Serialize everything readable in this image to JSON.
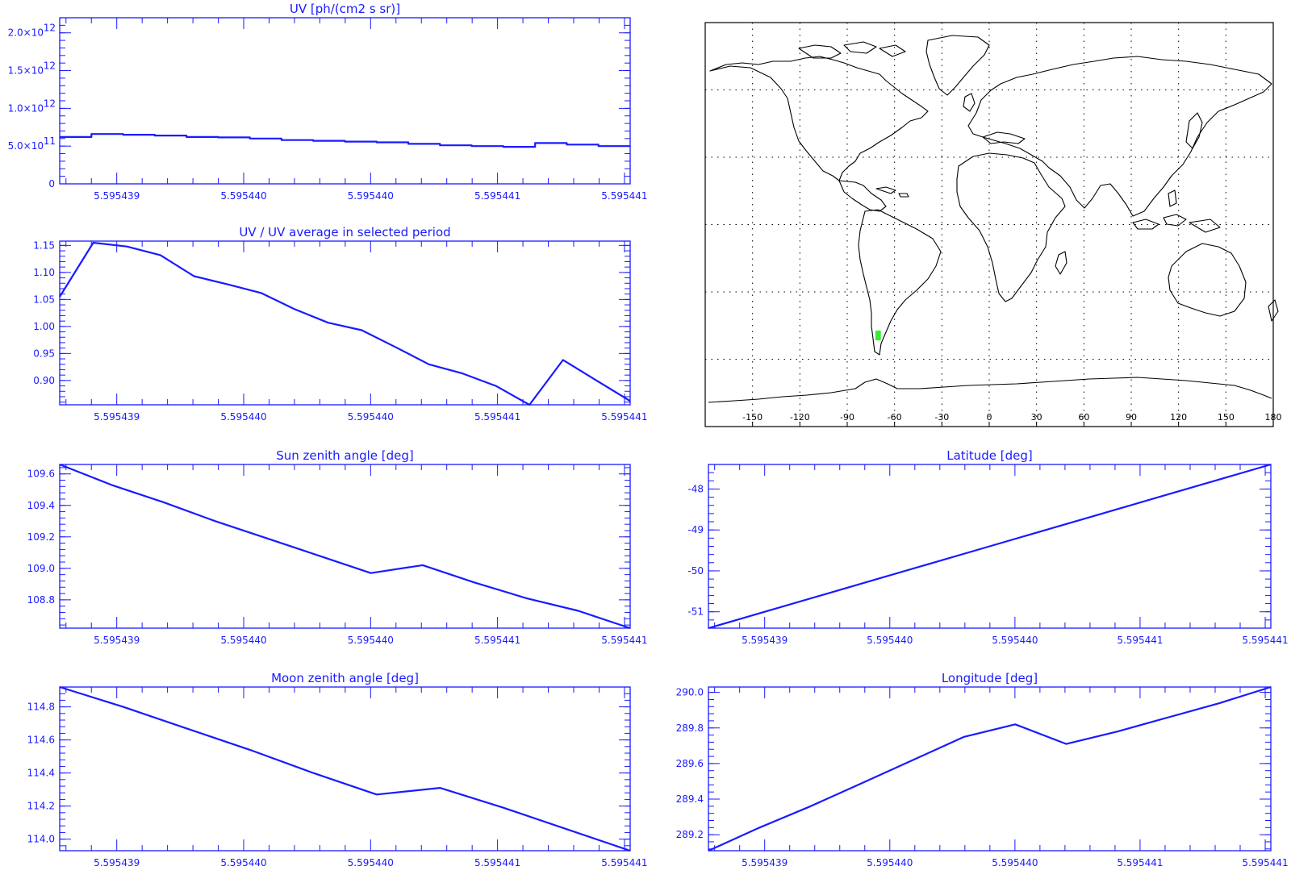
{
  "colors": {
    "plot": "#1a1aff",
    "map": "#000000",
    "marker": "#33ee33",
    "background": "#ffffff"
  },
  "chart_data": [
    {
      "id": "uv",
      "type": "line",
      "step": true,
      "title": "UV [ph/(cm2 s sr)]",
      "xlabel": "",
      "ylabel": "",
      "x_tick_labels": [
        "5.595439",
        "5.595440",
        "5.595440",
        "5.595441",
        "5.595441"
      ],
      "ylim": [
        0,
        2200000000000.0
      ],
      "y_ticks": [
        0,
        500000000000.0,
        1000000000000.0,
        1500000000000.0,
        2000000000000.0
      ],
      "y_tick_labels": [
        "0",
        "5.0×10",
        "1.0×10",
        "1.5×10",
        "2.0×10"
      ],
      "y_tick_exponents": [
        "",
        "11",
        "12",
        "12",
        "12"
      ],
      "values": [
        620000000000.0,
        660000000000.0,
        650000000000.0,
        640000000000.0,
        620000000000.0,
        615000000000.0,
        600000000000.0,
        580000000000.0,
        570000000000.0,
        560000000000.0,
        550000000000.0,
        530000000000.0,
        510000000000.0,
        500000000000.0,
        490000000000.0,
        540000000000.0,
        520000000000.0,
        500000000000.0
      ]
    },
    {
      "id": "uv_ratio",
      "type": "line",
      "title": "UV / UV average in selected period",
      "xlabel": "",
      "ylabel": "",
      "x_tick_labels": [
        "5.595439",
        "5.595440",
        "5.595440",
        "5.595441",
        "5.595441"
      ],
      "ylim": [
        0.855,
        1.158
      ],
      "y_ticks": [
        0.9,
        0.95,
        1.0,
        1.05,
        1.1,
        1.15
      ],
      "y_tick_labels": [
        "0.90",
        "0.95",
        "1.00",
        "1.05",
        "1.10",
        "1.15"
      ],
      "values": [
        1.055,
        1.155,
        1.148,
        1.132,
        1.093,
        1.078,
        1.062,
        1.032,
        1.007,
        0.993,
        0.962,
        0.93,
        0.913,
        0.89,
        0.855,
        0.938,
        0.9,
        0.862
      ]
    },
    {
      "id": "sun_zenith",
      "type": "line",
      "title": "Sun zenith angle [deg]",
      "xlabel": "",
      "ylabel": "",
      "x_tick_labels": [
        "5.595439",
        "5.595440",
        "5.595440",
        "5.595441",
        "5.595441"
      ],
      "ylim": [
        108.62,
        109.66
      ],
      "y_ticks": [
        108.8,
        109.0,
        109.2,
        109.4,
        109.6
      ],
      "y_tick_labels": [
        "108.8",
        "109.0",
        "109.2",
        "109.4",
        "109.6"
      ],
      "values": [
        109.66,
        109.53,
        109.42,
        109.3,
        109.19,
        109.08,
        108.97,
        109.02,
        108.91,
        108.81,
        108.73,
        108.62
      ]
    },
    {
      "id": "latitude",
      "type": "line",
      "title": "Latitude [deg]",
      "xlabel": "",
      "ylabel": "",
      "x_tick_labels": [
        "5.595439",
        "5.595440",
        "5.595440",
        "5.595441",
        "5.595441"
      ],
      "ylim": [
        -51.4,
        -47.4
      ],
      "y_ticks": [
        -51,
        -50,
        -49,
        -48
      ],
      "y_tick_labels": [
        "-51",
        "-50",
        "-49",
        "-48"
      ],
      "values": [
        -51.4,
        -51.0,
        -50.6,
        -50.2,
        -49.8,
        -49.4,
        -49.0,
        -48.6,
        -48.2,
        -47.8,
        -47.4
      ]
    },
    {
      "id": "moon_zenith",
      "type": "line",
      "title": "Moon zenith angle [deg]",
      "xlabel": "",
      "ylabel": "",
      "x_tick_labels": [
        "5.595439",
        "5.595440",
        "5.595440",
        "5.595441",
        "5.595441"
      ],
      "ylim": [
        113.93,
        114.92
      ],
      "y_ticks": [
        114.0,
        114.2,
        114.4,
        114.6,
        114.8
      ],
      "y_tick_labels": [
        "114.0",
        "114.2",
        "114.4",
        "114.6",
        "114.8"
      ],
      "values": [
        114.92,
        114.8,
        114.67,
        114.54,
        114.4,
        114.27,
        114.31,
        114.19,
        114.06,
        113.93
      ]
    },
    {
      "id": "longitude",
      "type": "line",
      "title": "Longitude [deg]",
      "xlabel": "",
      "ylabel": "",
      "x_tick_labels": [
        "5.595439",
        "5.595440",
        "5.595440",
        "5.595441",
        "5.595441"
      ],
      "ylim": [
        289.11,
        290.03
      ],
      "y_ticks": [
        289.2,
        289.4,
        289.6,
        289.8,
        290.0
      ],
      "y_tick_labels": [
        "289.2",
        "289.4",
        "289.6",
        "289.8",
        "290.0"
      ],
      "values": [
        289.11,
        289.24,
        289.36,
        289.49,
        289.62,
        289.75,
        289.82,
        289.71,
        289.78,
        289.86,
        289.94,
        290.03
      ]
    }
  ],
  "map": {
    "lon_ticks": [
      -150,
      -120,
      -90,
      -60,
      -30,
      0,
      30,
      60,
      90,
      120,
      150,
      180
    ],
    "lon_tick_labels": [
      "-150",
      "-120",
      "-90",
      "-60",
      "-30",
      "0",
      "30",
      "60",
      "90",
      "120",
      "150",
      "180"
    ],
    "lat_grid": [
      -60,
      -30,
      0,
      30,
      60
    ],
    "lonlim": [
      -180,
      180
    ],
    "latlim": [
      -90,
      90
    ],
    "track": {
      "lon": [
        289.11,
        290.03
      ],
      "lat": [
        -51.4,
        -47.4
      ]
    }
  }
}
